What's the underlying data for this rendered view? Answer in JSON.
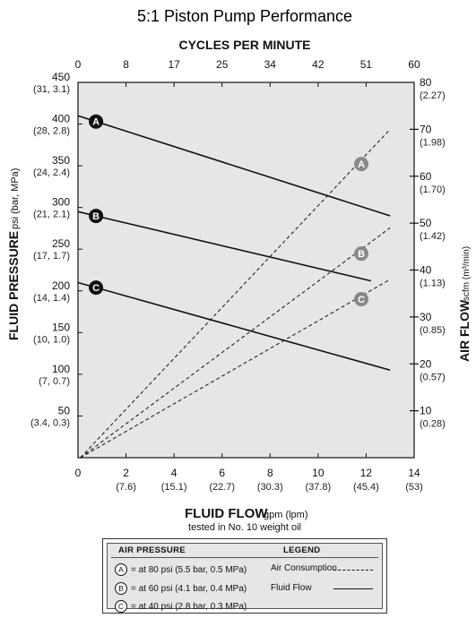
{
  "chart_data": {
    "type": "line",
    "title": "5:1 Piston Pump Performance",
    "top_axis": {
      "label": "CYCLES PER MINUTE",
      "ticks": [
        "0",
        "8",
        "17",
        "25",
        "34",
        "42",
        "51",
        "60"
      ]
    },
    "x_axis": {
      "label": "FLUID FLOW",
      "label_unit": "gpm (lpm)",
      "note": "tested in No. 10 weight oil",
      "range": [
        0,
        14
      ],
      "ticks": [
        0,
        2,
        4,
        6,
        8,
        10,
        12,
        14
      ],
      "tick_labels": [
        "0",
        "2",
        "4",
        "6",
        "8",
        "10",
        "12",
        "14"
      ],
      "sub_labels": [
        "",
        "(7.6)",
        "(15.1)",
        "(22.7)",
        "(30.3)",
        "(37.8)",
        "(45.4)",
        "(53)"
      ]
    },
    "y_left": {
      "label": "FLUID PRESSURE",
      "label_unit": "psi (bar, MPa)",
      "range": [
        0,
        450
      ],
      "ticks": [
        50,
        100,
        150,
        200,
        250,
        300,
        350,
        400,
        450
      ],
      "tick_labels": [
        "50",
        "100",
        "150",
        "200",
        "250",
        "300",
        "350",
        "400",
        "450"
      ],
      "sub_labels": [
        "(3.4, 0.3)",
        "(7, 0.7)",
        "(10, 1.0)",
        "(14, 1.4)",
        "(17, 1.7)",
        "(21, 2.1)",
        "(24, 2.4)",
        "(28, 2.8)",
        "(31, 3.1)"
      ]
    },
    "y_right": {
      "label": "AIR FLOW",
      "label_unit": "scfm (m³/min)",
      "range": [
        0,
        80
      ],
      "ticks": [
        10,
        20,
        30,
        40,
        50,
        60,
        70,
        80
      ],
      "tick_labels": [
        "10",
        "20",
        "30",
        "40",
        "50",
        "60",
        "70",
        "80"
      ],
      "sub_labels": [
        "(0.28)",
        "(0.57)",
        "(0.85)",
        "(1.13)",
        "(1.42)",
        "(1.70)",
        "(1.98)",
        "(2.27)"
      ]
    },
    "series": [
      {
        "name": "A",
        "kind": "fluid_flow",
        "x": [
          0,
          13
        ],
        "y": [
          410,
          290
        ],
        "marker_x": 0.75
      },
      {
        "name": "B",
        "kind": "fluid_flow",
        "x": [
          0,
          12.2
        ],
        "y": [
          295,
          212
        ],
        "marker_x": 0.75
      },
      {
        "name": "C",
        "kind": "fluid_flow",
        "x": [
          0,
          13
        ],
        "y": [
          210,
          105
        ],
        "marker_x": 0.75
      },
      {
        "name": "A",
        "kind": "air_consumption",
        "x": [
          0.1,
          13
        ],
        "y_air": [
          0,
          70
        ],
        "marker": [
          11.8,
          62.6
        ]
      },
      {
        "name": "B",
        "kind": "air_consumption",
        "x": [
          0.1,
          13
        ],
        "y_air": [
          0,
          49
        ],
        "marker": [
          11.8,
          43.5
        ]
      },
      {
        "name": "C",
        "kind": "air_consumption",
        "x": [
          0.1,
          13
        ],
        "y_air": [
          0,
          38
        ],
        "marker": [
          11.8,
          33.8
        ]
      }
    ],
    "grid": false,
    "background": "#e6e6e6",
    "line_color": "#111111",
    "marker_gray": "#888888"
  },
  "legend": {
    "col1_header": "AIR PRESSURE",
    "col2_header": "LEGEND",
    "rows": [
      {
        "letter": "A",
        "text": "= at 80 psi (5.5 bar, 0.5 MPa)",
        "legend_text": "Air Consumption",
        "style": "dash"
      },
      {
        "letter": "B",
        "text": "= at 60 psi (4.1 bar, 0.4 MPa)",
        "legend_text": "Fluid Flow",
        "style": "solid"
      },
      {
        "letter": "C",
        "text": "= at 40 psi (2.8 bar, 0.3 MPa)",
        "legend_text": "",
        "style": "none"
      }
    ]
  }
}
